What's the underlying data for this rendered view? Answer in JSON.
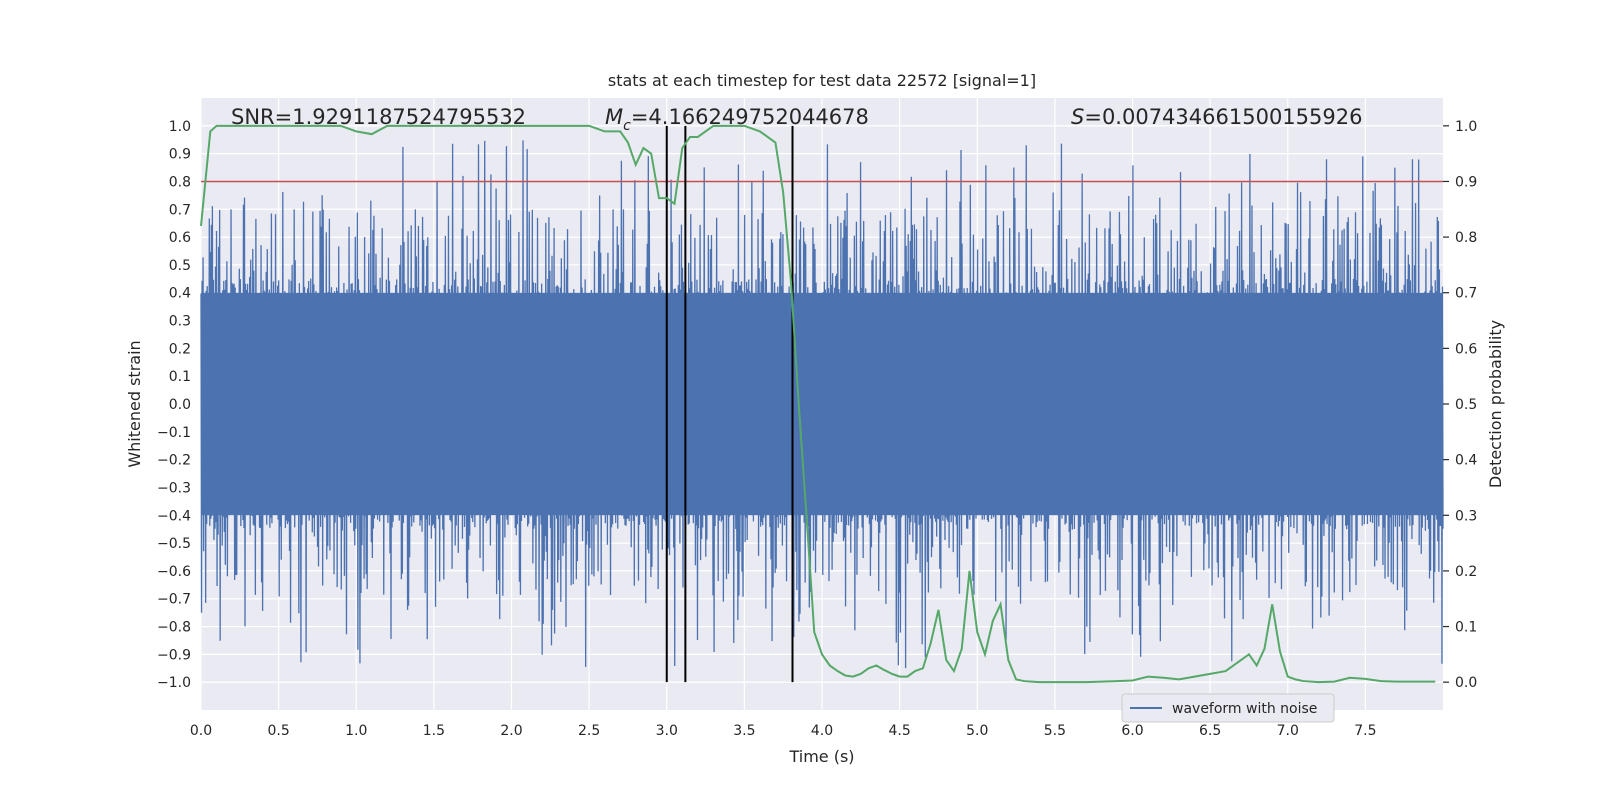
{
  "chart_data": {
    "type": "line",
    "title": "stats at each timestep for test data 22572 [signal=1]",
    "xlabel": "Time (s)",
    "ylabel_left": "Whitened strain",
    "ylabel_right": "Detection probability",
    "xlim": [
      0.0,
      8.0
    ],
    "ylim_left": [
      -1.1,
      1.1
    ],
    "ylim_right": [
      -0.05,
      1.05
    ],
    "x_ticks": [
      0.0,
      0.5,
      1.0,
      1.5,
      2.0,
      2.5,
      3.0,
      3.5,
      4.0,
      4.5,
      5.0,
      5.5,
      6.0,
      6.5,
      7.0,
      7.5
    ],
    "x_tick_labels": [
      "0.0",
      "0.5",
      "1.0",
      "1.5",
      "2.0",
      "2.5",
      "3.0",
      "3.5",
      "4.0",
      "4.5",
      "5.0",
      "5.5",
      "6.0",
      "6.5",
      "7.0",
      "7.5"
    ],
    "y_left_ticks": [
      -1.0,
      -0.9,
      -0.8,
      -0.7,
      -0.6,
      -0.5,
      -0.4,
      -0.3,
      -0.2,
      -0.1,
      0.0,
      0.1,
      0.2,
      0.3,
      0.4,
      0.5,
      0.6,
      0.7,
      0.8,
      0.9,
      1.0
    ],
    "y_left_tick_labels": [
      "−1.0",
      "−0.9",
      "−0.8",
      "−0.7",
      "−0.6",
      "−0.5",
      "−0.4",
      "−0.3",
      "−0.2",
      "−0.1",
      "0.0",
      "0.1",
      "0.2",
      "0.3",
      "0.4",
      "0.5",
      "0.6",
      "0.7",
      "0.8",
      "0.9",
      "1.0"
    ],
    "y_right_ticks": [
      0.0,
      0.1,
      0.2,
      0.3,
      0.4,
      0.5,
      0.6,
      0.7,
      0.8,
      0.9,
      1.0
    ],
    "y_right_tick_labels": [
      "0.0",
      "0.1",
      "0.2",
      "0.3",
      "0.4",
      "0.5",
      "0.6",
      "0.7",
      "0.8",
      "0.9",
      "1.0"
    ],
    "annotations": {
      "snr": "SNR=1.9291187524795532",
      "mc_symbol": "M",
      "mc_subscript": "c",
      "mc_value": "=4.166249752044678",
      "s_symbol": "S",
      "s_value": "=0.007434661500155926"
    },
    "threshold": {
      "value": 0.9,
      "axis": "right",
      "color": "#c44e52"
    },
    "vertical_lines": [
      3.0,
      3.12,
      3.81
    ],
    "legend": {
      "entries": [
        "waveform with noise"
      ],
      "placement": "lower-right"
    },
    "waveform": {
      "name": "waveform with noise",
      "color": "#4c72b0",
      "t_start": 0.0,
      "t_end": 8.0,
      "samples": 2400,
      "seed": 22572,
      "dense_band": [
        -0.4,
        0.4
      ],
      "peak_range": [
        -1.0,
        1.0
      ]
    },
    "probability": {
      "name": "detection probability",
      "color": "#55a868",
      "x": [
        0.0,
        0.06,
        0.1,
        0.2,
        0.3,
        0.5,
        0.7,
        0.9,
        1.0,
        1.1,
        1.2,
        1.4,
        1.6,
        1.8,
        2.0,
        2.2,
        2.4,
        2.5,
        2.6,
        2.65,
        2.7,
        2.75,
        2.8,
        2.85,
        2.9,
        2.95,
        3.0,
        3.05,
        3.1,
        3.15,
        3.2,
        3.25,
        3.3,
        3.35,
        3.4,
        3.5,
        3.6,
        3.7,
        3.75,
        3.8,
        3.85,
        3.9,
        3.95,
        4.0,
        4.05,
        4.1,
        4.15,
        4.2,
        4.25,
        4.3,
        4.35,
        4.4,
        4.45,
        4.5,
        4.55,
        4.6,
        4.65,
        4.7,
        4.75,
        4.8,
        4.85,
        4.9,
        4.95,
        5.0,
        5.05,
        5.1,
        5.15,
        5.2,
        5.25,
        5.3,
        5.35,
        5.4,
        5.45,
        5.5,
        5.6,
        5.7,
        5.8,
        5.9,
        6.0,
        6.1,
        6.2,
        6.3,
        6.4,
        6.5,
        6.6,
        6.7,
        6.75,
        6.8,
        6.85,
        6.9,
        6.95,
        7.0,
        7.05,
        7.1,
        7.2,
        7.3,
        7.4,
        7.5,
        7.6,
        7.7,
        7.8,
        7.9,
        7.95
      ],
      "y": [
        0.82,
        0.99,
        1.0,
        1.0,
        1.0,
        1.0,
        1.0,
        1.0,
        0.99,
        0.985,
        1.0,
        1.0,
        1.0,
        1.0,
        1.0,
        1.0,
        1.0,
        1.0,
        0.99,
        0.99,
        0.99,
        0.97,
        0.93,
        0.96,
        0.95,
        0.87,
        0.87,
        0.86,
        0.96,
        0.98,
        0.98,
        0.99,
        1.0,
        1.0,
        1.0,
        1.0,
        0.99,
        0.97,
        0.88,
        0.72,
        0.5,
        0.3,
        0.09,
        0.05,
        0.03,
        0.02,
        0.012,
        0.01,
        0.015,
        0.025,
        0.03,
        0.022,
        0.015,
        0.01,
        0.01,
        0.02,
        0.025,
        0.07,
        0.13,
        0.04,
        0.02,
        0.06,
        0.2,
        0.09,
        0.05,
        0.11,
        0.14,
        0.04,
        0.005,
        0.002,
        0.001,
        0.0,
        0.0,
        0.0,
        0.0,
        0.0,
        0.001,
        0.002,
        0.003,
        0.01,
        0.008,
        0.005,
        0.01,
        0.015,
        0.02,
        0.04,
        0.05,
        0.03,
        0.06,
        0.14,
        0.055,
        0.01,
        0.005,
        0.002,
        0.0,
        0.001,
        0.008,
        0.006,
        0.002,
        0.001,
        0.001,
        0.001,
        0.001
      ]
    }
  }
}
